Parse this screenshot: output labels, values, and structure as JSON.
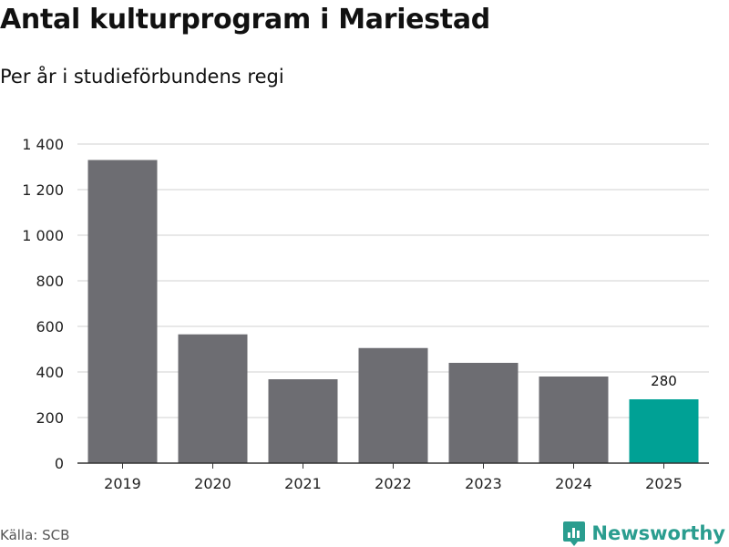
{
  "title": "Antal kulturprogram i Mariestad",
  "subtitle": "Per år i studieförbundens regi",
  "source": "Källa: SCB",
  "brand": {
    "name": "Newsworthy",
    "color": "#2a9d8f"
  },
  "colors": {
    "bar": "#6d6d72",
    "highlight": "#00a195",
    "grid": "#d9d9d9",
    "axis": "#333333"
  },
  "chart_data": {
    "type": "bar",
    "title": "Antal kulturprogram i Mariestad",
    "subtitle": "Per år i studieförbundens regi",
    "categories": [
      "2019",
      "2020",
      "2021",
      "2022",
      "2023",
      "2024",
      "2025"
    ],
    "values": [
      1330,
      565,
      368,
      505,
      440,
      380,
      280
    ],
    "highlight_index": 6,
    "data_labels": [
      {
        "index": 6,
        "text": "280"
      }
    ],
    "ylim": [
      0,
      1400
    ],
    "yticks": [
      0,
      200,
      400,
      600,
      800,
      1000,
      1200,
      1400
    ],
    "ytick_labels": [
      "0",
      "200",
      "400",
      "600",
      "800",
      "1 000",
      "1 200",
      "1 400"
    ],
    "grid": true,
    "xlabel": "",
    "ylabel": ""
  }
}
